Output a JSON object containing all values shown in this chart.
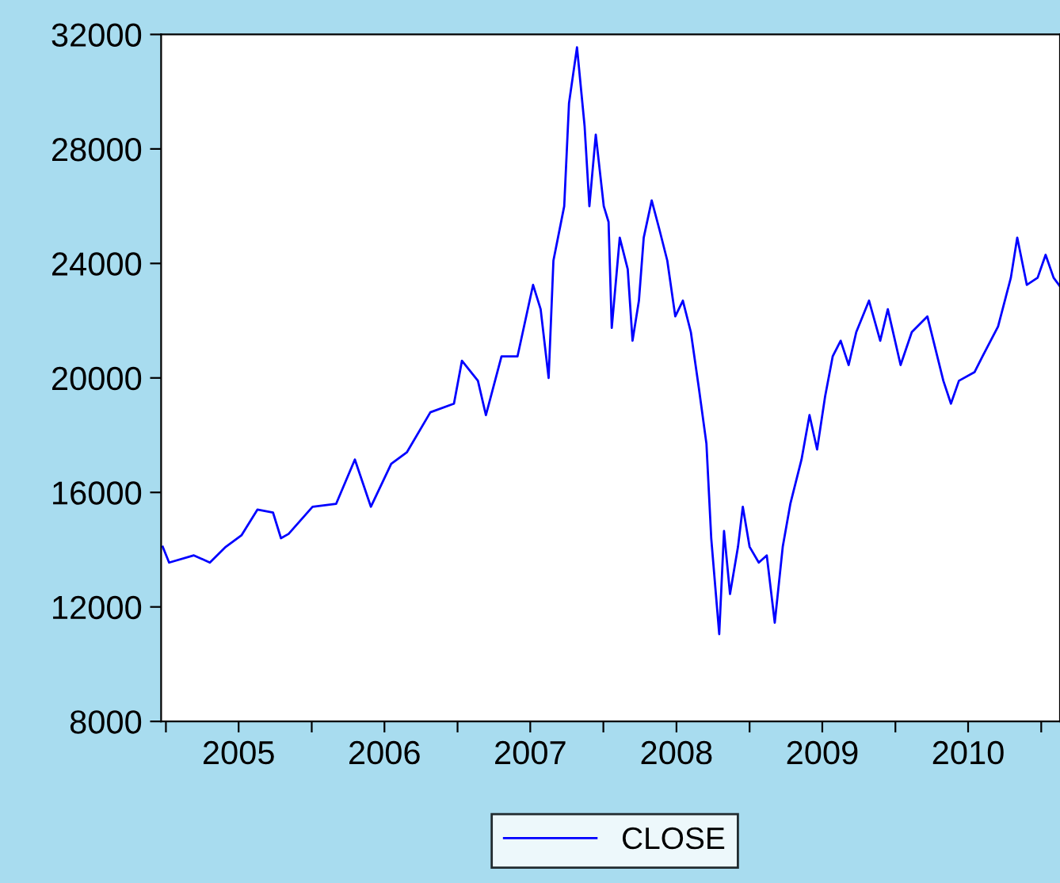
{
  "chart_data": {
    "type": "line",
    "x": [
      "2004-12-24",
      "2005-01-09",
      "2005-03-12",
      "2005-04-21",
      "2005-05-31",
      "2005-07-09",
      "2005-08-18",
      "2005-09-26",
      "2005-10-16",
      "2005-11-04",
      "2006-01-03",
      "2006-03-03",
      "2006-04-19",
      "2006-05-29",
      "2006-07-19",
      "2006-08-27",
      "2006-10-25",
      "2006-12-23",
      "2007-01-12",
      "2007-02-21",
      "2007-03-13",
      "2007-04-21",
      "2007-05-31",
      "2007-07-09",
      "2007-07-28",
      "2007-08-17",
      "2007-08-29",
      "2007-09-25",
      "2007-10-07",
      "2007-10-27",
      "2007-11-15",
      "2007-11-27",
      "2007-12-13",
      "2008-01-02",
      "2008-01-14",
      "2008-01-22",
      "2008-02-11",
      "2008-03-02",
      "2008-03-14",
      "2008-03-30",
      "2008-04-11",
      "2008-05-01",
      "2008-05-20",
      "2008-06-09",
      "2008-06-29",
      "2008-07-18",
      "2008-08-07",
      "2008-08-27",
      "2008-09-15",
      "2008-09-27",
      "2008-10-17",
      "2008-10-29",
      "2008-11-13",
      "2008-12-03",
      "2008-12-15",
      "2009-01-01",
      "2009-01-24",
      "2009-02-13",
      "2009-03-05",
      "2009-03-25",
      "2009-04-13",
      "2009-05-11",
      "2009-05-31",
      "2009-06-19",
      "2009-07-09",
      "2009-07-28",
      "2009-08-17",
      "2009-09-06",
      "2009-09-25",
      "2009-10-27",
      "2009-11-24",
      "2009-12-13",
      "2010-01-14",
      "2010-02-11",
      "2010-03-22",
      "2010-05-01",
      "2010-05-20",
      "2010-06-09",
      "2010-07-18",
      "2010-08-07",
      "2010-09-15",
      "2010-10-17",
      "2010-11-02",
      "2010-11-26",
      "2010-12-23",
      "2011-01-12",
      "2011-02-01",
      "2011-02-17"
    ],
    "series": [
      {
        "name": "CLOSE",
        "color": "#0000ff",
        "values": [
          14100,
          13550,
          13800,
          13550,
          14100,
          14500,
          15400,
          15300,
          14400,
          14550,
          15500,
          15600,
          17150,
          15500,
          17000,
          17400,
          18800,
          19100,
          20600,
          19900,
          18700,
          20750,
          20750,
          23250,
          22400,
          20000,
          24100,
          26000,
          29600,
          31550,
          28800,
          26000,
          28500,
          26000,
          25450,
          21750,
          24900,
          23800,
          21300,
          22700,
          24900,
          26200,
          25200,
          24100,
          22150,
          22700,
          21600,
          19650,
          17700,
          14400,
          11050,
          14650,
          12450,
          14100,
          15500,
          14100,
          13550,
          13800,
          11450,
          14100,
          15600,
          17150,
          18700,
          17500,
          19350,
          20750,
          21300,
          20450,
          21600,
          22700,
          21300,
          22400,
          20450,
          21600,
          22150,
          19900,
          19100,
          19900,
          20200,
          20750,
          21800,
          23500,
          24900,
          23250,
          23500,
          24300,
          23500,
          23200
        ]
      }
    ],
    "xlim": [
      "2004-12-20",
      "2011-02-17"
    ],
    "xticks": [
      {
        "value": "2005-01-01",
        "label": null
      },
      {
        "value": "2005-07-02",
        "label": "2005"
      },
      {
        "value": "2006-01-01",
        "label": null
      },
      {
        "value": "2006-07-02",
        "label": "2006"
      },
      {
        "value": "2007-01-01",
        "label": null
      },
      {
        "value": "2007-07-02",
        "label": "2007"
      },
      {
        "value": "2008-01-01",
        "label": null
      },
      {
        "value": "2008-07-02",
        "label": "2008"
      },
      {
        "value": "2009-01-01",
        "label": null
      },
      {
        "value": "2009-07-02",
        "label": "2009"
      },
      {
        "value": "2010-01-01",
        "label": null
      },
      {
        "value": "2010-07-02",
        "label": "2010"
      },
      {
        "value": "2011-01-01",
        "label": null
      }
    ],
    "ylim": [
      8000,
      32000
    ],
    "yticks": [
      8000,
      12000,
      16000,
      20000,
      24000,
      28000,
      32000
    ],
    "grid": false,
    "legend": "bottom",
    "line_style": "solid",
    "marker": "none"
  }
}
